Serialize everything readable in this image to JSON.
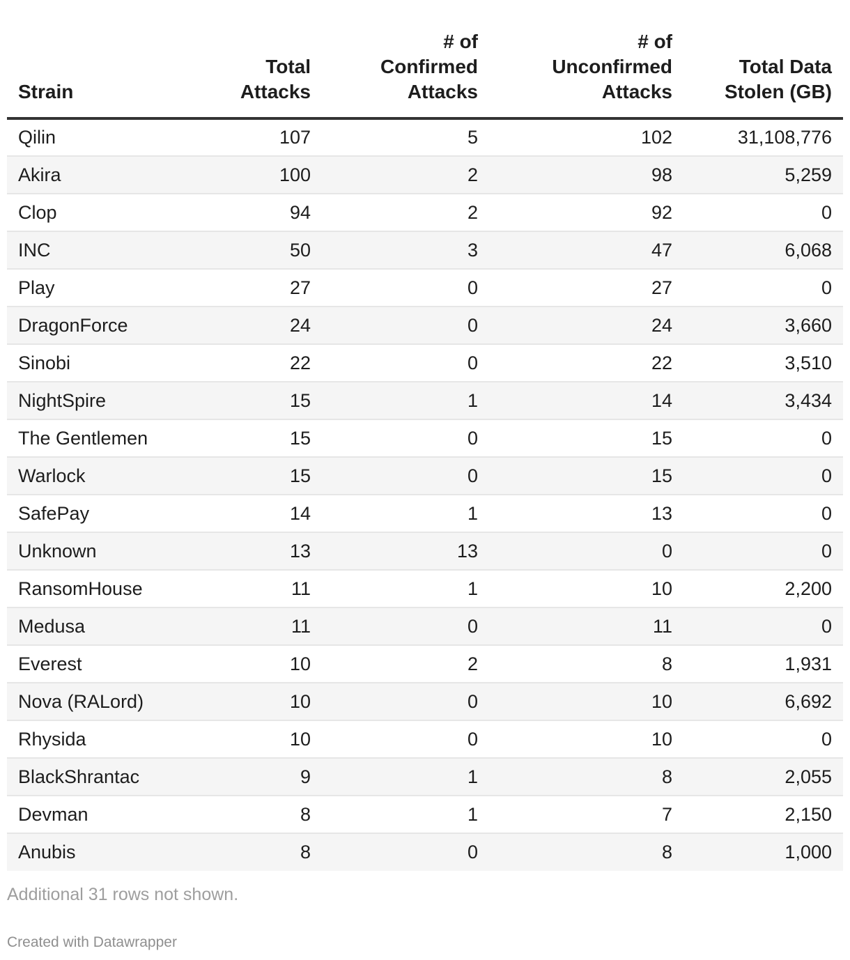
{
  "table": {
    "headers": [
      {
        "lines": [
          "Strain"
        ],
        "align": "left"
      },
      {
        "lines": [
          "Total",
          "Attacks"
        ],
        "align": "right"
      },
      {
        "lines": [
          "# of",
          "Confirmed",
          "Attacks"
        ],
        "align": "right"
      },
      {
        "lines": [
          "# of",
          "Unconfirmed",
          "Attacks"
        ],
        "align": "right"
      },
      {
        "lines": [
          "Total Data",
          "Stolen (GB)"
        ],
        "align": "right"
      }
    ],
    "rows": [
      [
        "Qilin",
        "107",
        "5",
        "102",
        "31,108,776"
      ],
      [
        "Akira",
        "100",
        "2",
        "98",
        "5,259"
      ],
      [
        "Clop",
        "94",
        "2",
        "92",
        "0"
      ],
      [
        "INC",
        "50",
        "3",
        "47",
        "6,068"
      ],
      [
        "Play",
        "27",
        "0",
        "27",
        "0"
      ],
      [
        "DragonForce",
        "24",
        "0",
        "24",
        "3,660"
      ],
      [
        "Sinobi",
        "22",
        "0",
        "22",
        "3,510"
      ],
      [
        "NightSpire",
        "15",
        "1",
        "14",
        "3,434"
      ],
      [
        "The Gentlemen",
        "15",
        "0",
        "15",
        "0"
      ],
      [
        "Warlock",
        "15",
        "0",
        "15",
        "0"
      ],
      [
        "SafePay",
        "14",
        "1",
        "13",
        "0"
      ],
      [
        "Unknown",
        "13",
        "13",
        "0",
        "0"
      ],
      [
        "RansomHouse",
        "11",
        "1",
        "10",
        "2,200"
      ],
      [
        "Medusa",
        "11",
        "0",
        "11",
        "0"
      ],
      [
        "Everest",
        "10",
        "2",
        "8",
        "1,931"
      ],
      [
        "Nova (RALord)",
        "10",
        "0",
        "10",
        "6,692"
      ],
      [
        "Rhysida",
        "10",
        "0",
        "10",
        "0"
      ],
      [
        "BlackShrantac",
        "9",
        "1",
        "8",
        "2,055"
      ],
      [
        "Devman",
        "8",
        "1",
        "7",
        "2,150"
      ],
      [
        "Anubis",
        "8",
        "0",
        "8",
        "1,000"
      ]
    ]
  },
  "footer": {
    "note": "Additional 31 rows not shown.",
    "credit": "Created with Datawrapper"
  },
  "colors": {
    "text": "#1d1d1d",
    "header_rule": "#333333",
    "row_stripe": "#f5f5f5",
    "row_divider": "#e6e6e6",
    "note": "#9e9e9e"
  }
}
